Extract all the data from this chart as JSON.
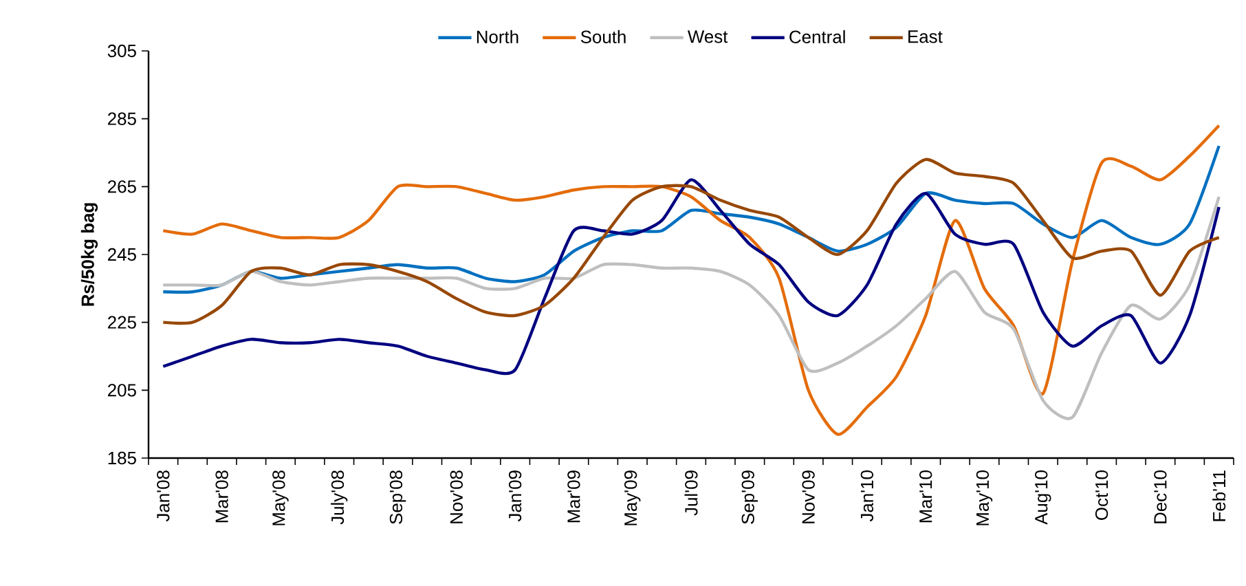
{
  "chart_data": {
    "type": "line",
    "ylabel": "Rs/50kg bag",
    "categories": [
      "Jan'08",
      null,
      "Mar'08",
      null,
      "May'08",
      null,
      "July'08",
      null,
      "Sep'08",
      null,
      "Nov'08",
      null,
      "Jan'09",
      null,
      "Mar'09",
      null,
      "May'09",
      null,
      "Jul'09",
      null,
      "Sep'09",
      null,
      "Nov'09",
      null,
      "Jan'10",
      null,
      "Mar'10",
      null,
      "May'10",
      null,
      "Aug'10",
      null,
      "Oct'10",
      null,
      "Dec'10",
      null,
      "Feb'11"
    ],
    "series": [
      {
        "name": "North",
        "color": "#0070c0",
        "values": [
          234,
          234,
          236,
          240,
          238,
          239,
          240,
          241,
          242,
          241,
          241,
          238,
          237,
          239,
          246,
          250,
          252,
          252,
          258,
          257,
          256,
          254,
          250,
          246,
          248,
          253,
          263,
          261,
          260,
          260,
          254,
          250,
          255,
          250,
          248,
          254,
          277
        ]
      },
      {
        "name": "South",
        "color": "#e46c0a",
        "values": [
          252,
          251,
          254,
          252,
          250,
          250,
          250,
          255,
          265,
          265,
          265,
          263,
          261,
          262,
          264,
          265,
          265,
          265,
          262,
          255,
          250,
          238,
          205,
          192,
          200,
          209,
          227,
          255,
          235,
          224,
          204,
          243,
          272,
          271,
          267,
          274,
          283
        ]
      },
      {
        "name": "West",
        "color": "#bfbfbf",
        "values": [
          236,
          236,
          236,
          240,
          237,
          236,
          237,
          238,
          238,
          238,
          238,
          235,
          235,
          238,
          238,
          242,
          242,
          241,
          241,
          240,
          236,
          227,
          211,
          213,
          218,
          224,
          232,
          240,
          228,
          223,
          202,
          197,
          216,
          230,
          226,
          236,
          262
        ]
      },
      {
        "name": "Central",
        "color": "#000080",
        "values": [
          212,
          215,
          218,
          220,
          219,
          219,
          220,
          219,
          218,
          215,
          213,
          211,
          211,
          232,
          252,
          252,
          251,
          255,
          267,
          258,
          248,
          242,
          231,
          227,
          236,
          254,
          263,
          251,
          248,
          248,
          228,
          218,
          224,
          227,
          213,
          227,
          259
        ]
      },
      {
        "name": "East",
        "color": "#984807",
        "values": [
          225,
          225,
          230,
          240,
          241,
          239,
          242,
          242,
          240,
          237,
          232,
          228,
          227,
          230,
          238,
          250,
          261,
          265,
          265,
          261,
          258,
          256,
          250,
          245,
          252,
          266,
          273,
          269,
          268,
          266,
          255,
          244,
          246,
          246,
          233,
          246,
          250
        ]
      }
    ],
    "ylim": [
      185,
      305
    ],
    "yticks": [
      185,
      205,
      225,
      245,
      265,
      285,
      305
    ],
    "legend": "top"
  }
}
